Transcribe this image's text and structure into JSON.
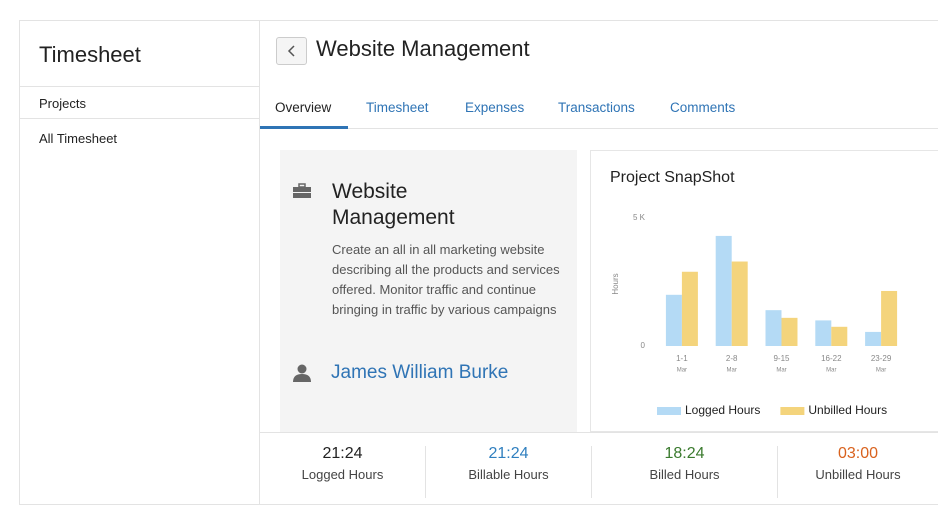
{
  "sidebar": {
    "title": "Timesheet",
    "items": [
      "Projects",
      "All Timesheet"
    ]
  },
  "header": {
    "title": "Website Management"
  },
  "tabs": [
    "Overview",
    "Timesheet",
    "Expenses",
    "Transactions",
    "Comments"
  ],
  "project": {
    "name": "Website Management",
    "description": "Create an all in all marketing website describing all the products and services offered. Monitor traffic and continue bringing in traffic by various campaigns",
    "owner": "James William Burke"
  },
  "chart_data": {
    "type": "bar",
    "title": "Project SnapShot",
    "y_label": "Hours",
    "categories": [
      "1-1",
      "2-8",
      "9-15",
      "16-22",
      "23-29"
    ],
    "category_sublabels": [
      "Mar",
      "Mar",
      "Mar",
      "Mar",
      "Mar"
    ],
    "series": [
      {
        "name": "Logged Hours",
        "color": "#b4daf5",
        "values": [
          2000,
          4300,
          1400,
          1000,
          550
        ]
      },
      {
        "name": "Unbilled Hours",
        "color": "#f4d47c",
        "values": [
          2900,
          3300,
          1100,
          750,
          2150
        ]
      }
    ],
    "ylim": [
      0,
      5000
    ],
    "yticks": [
      0,
      {
        "value": 5000,
        "label": "5 K"
      }
    ],
    "legend": "bottom"
  },
  "stats": [
    {
      "value": "21:24",
      "label": "Logged Hours",
      "color": "#222222"
    },
    {
      "value": "21:24",
      "label": "Billable Hours",
      "color": "#2f7fbf"
    },
    {
      "value": "18:24",
      "label": "Billed Hours",
      "color": "#3a7a2e"
    },
    {
      "value": "03:00",
      "label": "Unbilled Hours",
      "color": "#d9621e"
    }
  ]
}
